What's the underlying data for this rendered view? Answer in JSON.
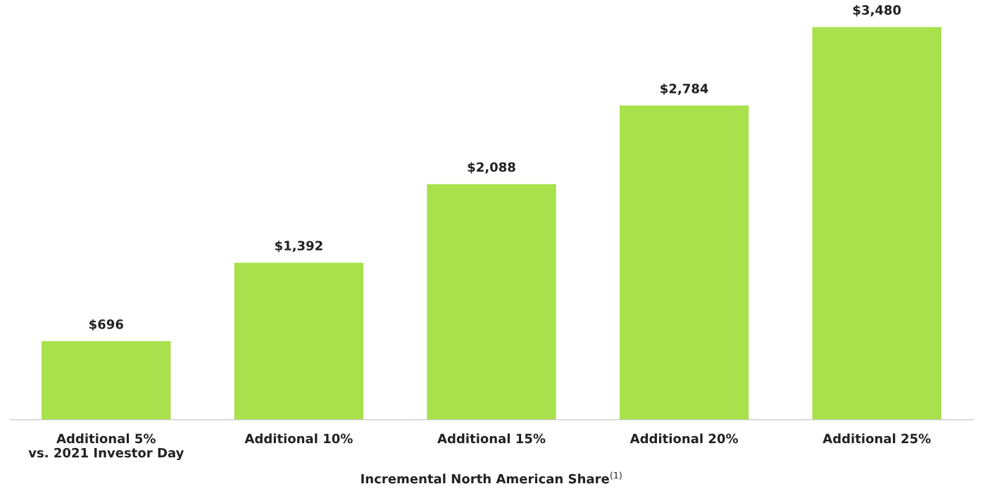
{
  "chart_data": {
    "type": "bar",
    "xlabel": "Incremental North American Share$^{(1)}$",
    "categories": [
      "Additional 5%\nvs. 2021 Investor Day",
      "Additional 10%",
      "Additional 15%",
      "Additional 20%",
      "Additional 25%"
    ],
    "values": [
      696,
      1392,
      2088,
      2784,
      3480
    ],
    "value_labels": [
      "$696",
      "$1,392",
      "$2,088",
      "$2,784",
      "$3,480"
    ],
    "color": "#a8e14b",
    "grid": false,
    "legend": false
  }
}
